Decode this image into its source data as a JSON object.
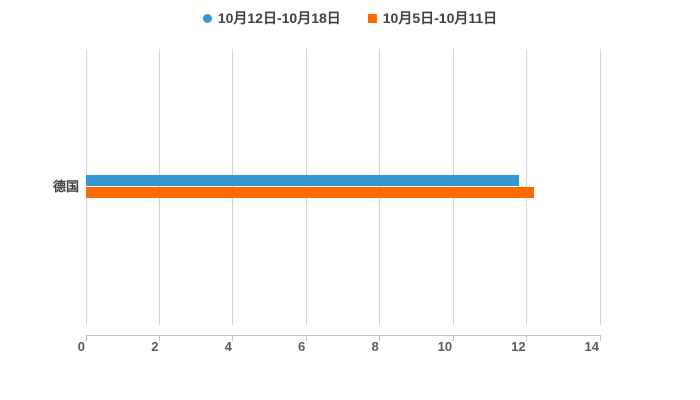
{
  "legend": {
    "items": [
      {
        "label": "10月12日-10月18日",
        "marker": "circle"
      },
      {
        "label": "10月5日-10月11日",
        "marker": "square"
      }
    ]
  },
  "chart_data": {
    "type": "bar",
    "orientation": "horizontal",
    "title": "",
    "xlabel": "",
    "ylabel": "",
    "categories": [
      "德国"
    ],
    "series": [
      {
        "name": "10月12日-10月18日",
        "values": [
          11.8
        ],
        "color": "#3597d3"
      },
      {
        "name": "10月5日-10月11日",
        "values": [
          12.2
        ],
        "color": "#ff6a00"
      }
    ],
    "xlim": [
      0,
      14
    ],
    "x_ticks": [
      0,
      2,
      4,
      6,
      8,
      10,
      12,
      14
    ],
    "grid": true,
    "gridline_color": "#d4d4d4",
    "axis_color": "#c0c0c0",
    "legend_position": "top",
    "background_color": "#ffffff"
  }
}
